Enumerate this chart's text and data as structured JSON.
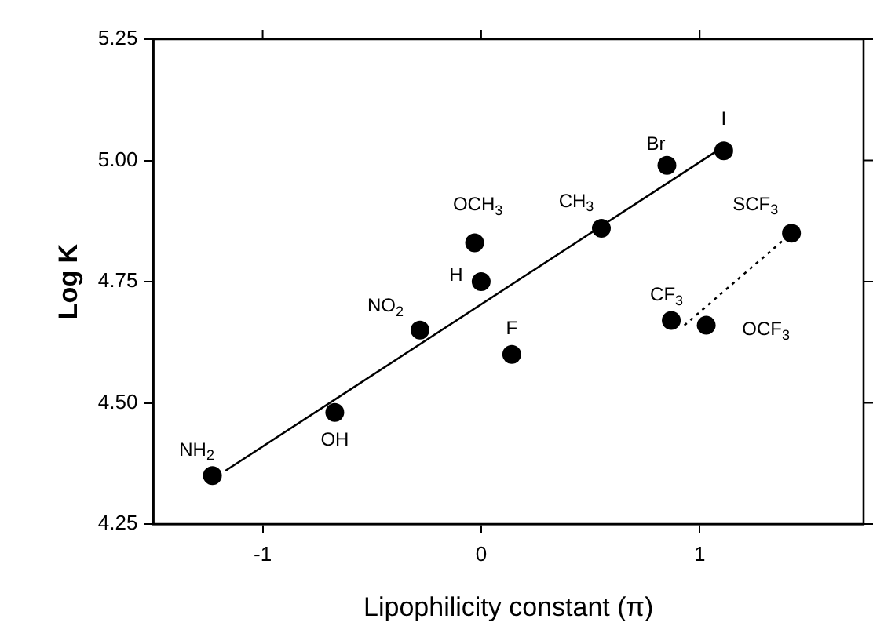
{
  "chart_data": {
    "type": "scatter",
    "xlabel": "Lipophilicity constant (π)",
    "ylabel": "Log K",
    "xlim": [
      -1.5,
      1.75
    ],
    "xticks": [
      -1,
      0,
      1
    ],
    "ylim": [
      4.25,
      5.25
    ],
    "yticks": [
      {
        "value": 4.25,
        "label": "4.25"
      },
      {
        "value": 4.5,
        "label": "4.50"
      },
      {
        "value": 4.75,
        "label": "4.75"
      },
      {
        "value": 5,
        "label": "5.00"
      },
      {
        "value": 5.25,
        "label": "5.25"
      }
    ],
    "grid": false,
    "legend": false,
    "marker": "circle",
    "series": [
      {
        "color": "#000000",
        "x": [
          -1.23,
          -0.67,
          -0.28,
          0.14,
          0.87,
          1.03,
          0,
          -0.03,
          0.55,
          0.85,
          1.11,
          1.42
        ],
        "values": [
          4.35,
          4.48,
          4.65,
          4.6,
          4.67,
          4.66,
          4.75,
          4.83,
          4.86,
          4.99,
          5.02,
          4.85
        ]
      },
      {
        "type": "line",
        "color": "#000000",
        "line_style": "solid",
        "marker": "none",
        "x": [
          -1.17,
          1.08
        ],
        "values": [
          4.36,
          5.02
        ]
      },
      {
        "type": "line",
        "color": "#000000",
        "line_style": "dotted",
        "marker": "none",
        "x": [
          0.93,
          1.42
        ],
        "values": [
          4.66,
          4.85
        ]
      }
    ],
    "annotations": [
      {
        "text": "NH$_{2}$",
        "x": -1.23,
        "y": 4.35
      },
      {
        "text": "OH",
        "x": -0.67,
        "y": 4.48
      },
      {
        "text": "NO$_{2}$",
        "x": -0.28,
        "y": 4.65
      },
      {
        "text": "F",
        "x": 0.14,
        "y": 4.6
      },
      {
        "text": "CF$_{3}$",
        "x": 0.87,
        "y": 4.67
      },
      {
        "text": "OCF$_{3}$",
        "x": 1.03,
        "y": 4.66
      },
      {
        "text": "H",
        "x": 0,
        "y": 4.75
      },
      {
        "text": "OCH$_{3}$",
        "x": -0.03,
        "y": 4.83
      },
      {
        "text": "CH$_{3}$",
        "x": 0.55,
        "y": 4.86
      },
      {
        "text": "Br",
        "x": 0.85,
        "y": 4.99
      },
      {
        "text": "I",
        "x": 1.11,
        "y": 5.02
      },
      {
        "text": "SCF$_{3}$",
        "x": 1.42,
        "y": 4.85
      }
    ]
  }
}
